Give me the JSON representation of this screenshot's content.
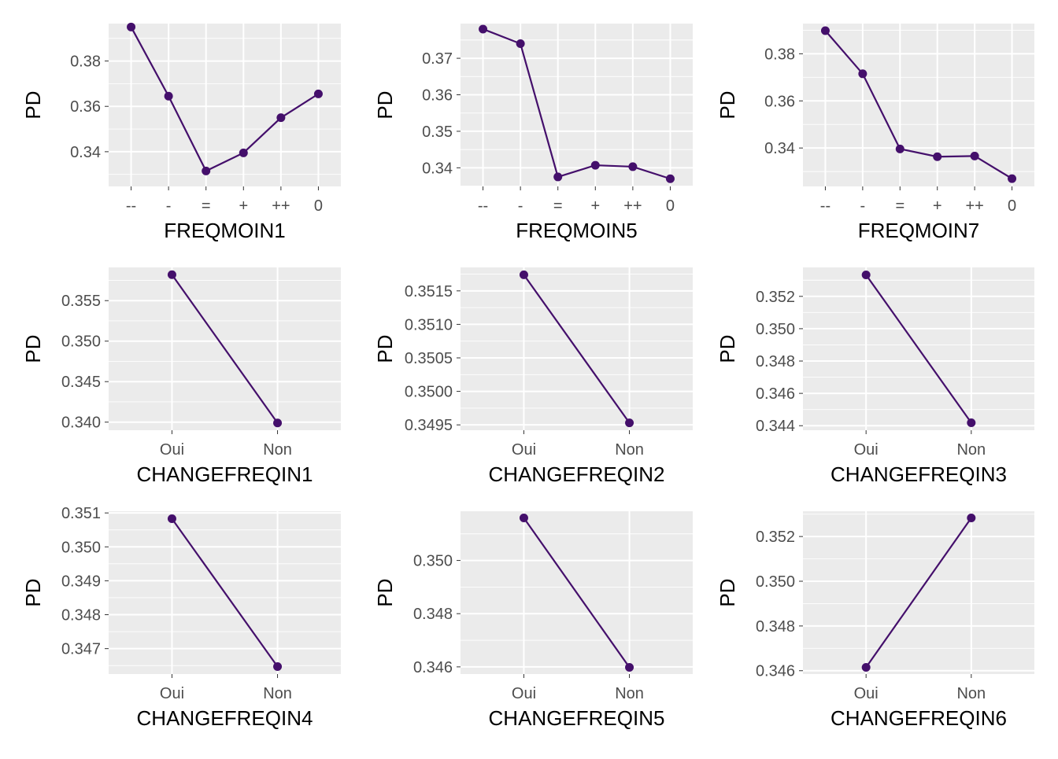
{
  "colors": {
    "background": "#ffffff",
    "panel": "#ebebeb",
    "grid_major": "#ffffff",
    "line": "#440f6b",
    "tick_text": "#4d4d4d",
    "title_text": "#000000"
  },
  "chart_data": [
    {
      "type": "line",
      "xlabel": "FREQMOIN1",
      "ylabel": "PD",
      "categories": [
        "--",
        "-",
        "=",
        "+",
        "++",
        "0"
      ],
      "values": [
        0.395,
        0.3645,
        0.3315,
        0.3395,
        0.355,
        0.3655
      ],
      "yticks": [
        "0.34",
        "0.36",
        "0.38"
      ],
      "ytick_values": [
        0.34,
        0.36,
        0.38
      ],
      "ylim": [
        0.3247,
        0.3965
      ],
      "grid": true
    },
    {
      "type": "line",
      "xlabel": "FREQMOIN5",
      "ylabel": "PD",
      "categories": [
        "--",
        "-",
        "=",
        "+",
        "++",
        "0"
      ],
      "values": [
        0.378,
        0.374,
        0.3375,
        0.3407,
        0.3403,
        0.337
      ],
      "yticks": [
        "0.34",
        "0.35",
        "0.36",
        "0.37"
      ],
      "ytick_values": [
        0.34,
        0.35,
        0.36,
        0.37
      ],
      "ylim": [
        0.3349,
        0.3795
      ],
      "grid": true
    },
    {
      "type": "line",
      "xlabel": "FREQMOIN7",
      "ylabel": "PD",
      "categories": [
        "--",
        "-",
        "=",
        "+",
        "++",
        "0"
      ],
      "values": [
        0.3898,
        0.3715,
        0.3396,
        0.3363,
        0.3366,
        0.327
      ],
      "yticks": [
        "0.34",
        "0.36",
        "0.38"
      ],
      "ytick_values": [
        0.34,
        0.36,
        0.38
      ],
      "ylim": [
        0.3237,
        0.3928
      ],
      "grid": true
    },
    {
      "type": "line",
      "xlabel": "CHANGEFREQIN1",
      "ylabel": "PD",
      "categories": [
        "Oui",
        "Non"
      ],
      "values": [
        0.3582,
        0.3399
      ],
      "yticks": [
        "0.340",
        "0.345",
        "0.350",
        "0.355"
      ],
      "ytick_values": [
        0.34,
        0.345,
        0.35,
        0.355
      ],
      "ylim": [
        0.339,
        0.3591
      ],
      "grid": true
    },
    {
      "type": "line",
      "xlabel": "CHANGEFREQIN2",
      "ylabel": "PD",
      "categories": [
        "Oui",
        "Non"
      ],
      "values": [
        0.35174,
        0.34953
      ],
      "yticks": [
        "0.3495",
        "0.3500",
        "0.3505",
        "0.3510",
        "0.3515"
      ],
      "ytick_values": [
        0.3495,
        0.35,
        0.3505,
        0.351,
        0.3515
      ],
      "ylim": [
        0.34942,
        0.35185
      ],
      "grid": true
    },
    {
      "type": "line",
      "xlabel": "CHANGEFREQIN3",
      "ylabel": "PD",
      "categories": [
        "Oui",
        "Non"
      ],
      "values": [
        0.35333,
        0.34418
      ],
      "yticks": [
        "0.344",
        "0.346",
        "0.348",
        "0.350",
        "0.352"
      ],
      "ytick_values": [
        0.344,
        0.346,
        0.348,
        0.35,
        0.352
      ],
      "ylim": [
        0.34372,
        0.35379
      ],
      "grid": true
    },
    {
      "type": "line",
      "xlabel": "CHANGEFREQIN4",
      "ylabel": "PD",
      "categories": [
        "Oui",
        "Non"
      ],
      "values": [
        0.35083,
        0.34647
      ],
      "yticks": [
        "0.347",
        "0.348",
        "0.349",
        "0.350",
        "0.351"
      ],
      "ytick_values": [
        0.347,
        0.348,
        0.349,
        0.35,
        0.351
      ],
      "ylim": [
        0.34625,
        0.35105
      ],
      "grid": true
    },
    {
      "type": "line",
      "xlabel": "CHANGEFREQIN5",
      "ylabel": "PD",
      "categories": [
        "Oui",
        "Non"
      ],
      "values": [
        0.3516,
        0.34598
      ],
      "yticks": [
        "0.346",
        "0.348",
        "0.350"
      ],
      "ytick_values": [
        0.346,
        0.348,
        0.35
      ],
      "ylim": [
        0.34573,
        0.35185
      ],
      "grid": true
    },
    {
      "type": "line",
      "xlabel": "CHANGEFREQIN6",
      "ylabel": "PD",
      "categories": [
        "Oui",
        "Non"
      ],
      "values": [
        0.34615,
        0.35283
      ],
      "yticks": [
        "0.346",
        "0.348",
        "0.350",
        "0.352"
      ],
      "ytick_values": [
        0.346,
        0.348,
        0.35,
        0.352
      ],
      "ylim": [
        0.34585,
        0.35313
      ],
      "grid": true
    }
  ]
}
